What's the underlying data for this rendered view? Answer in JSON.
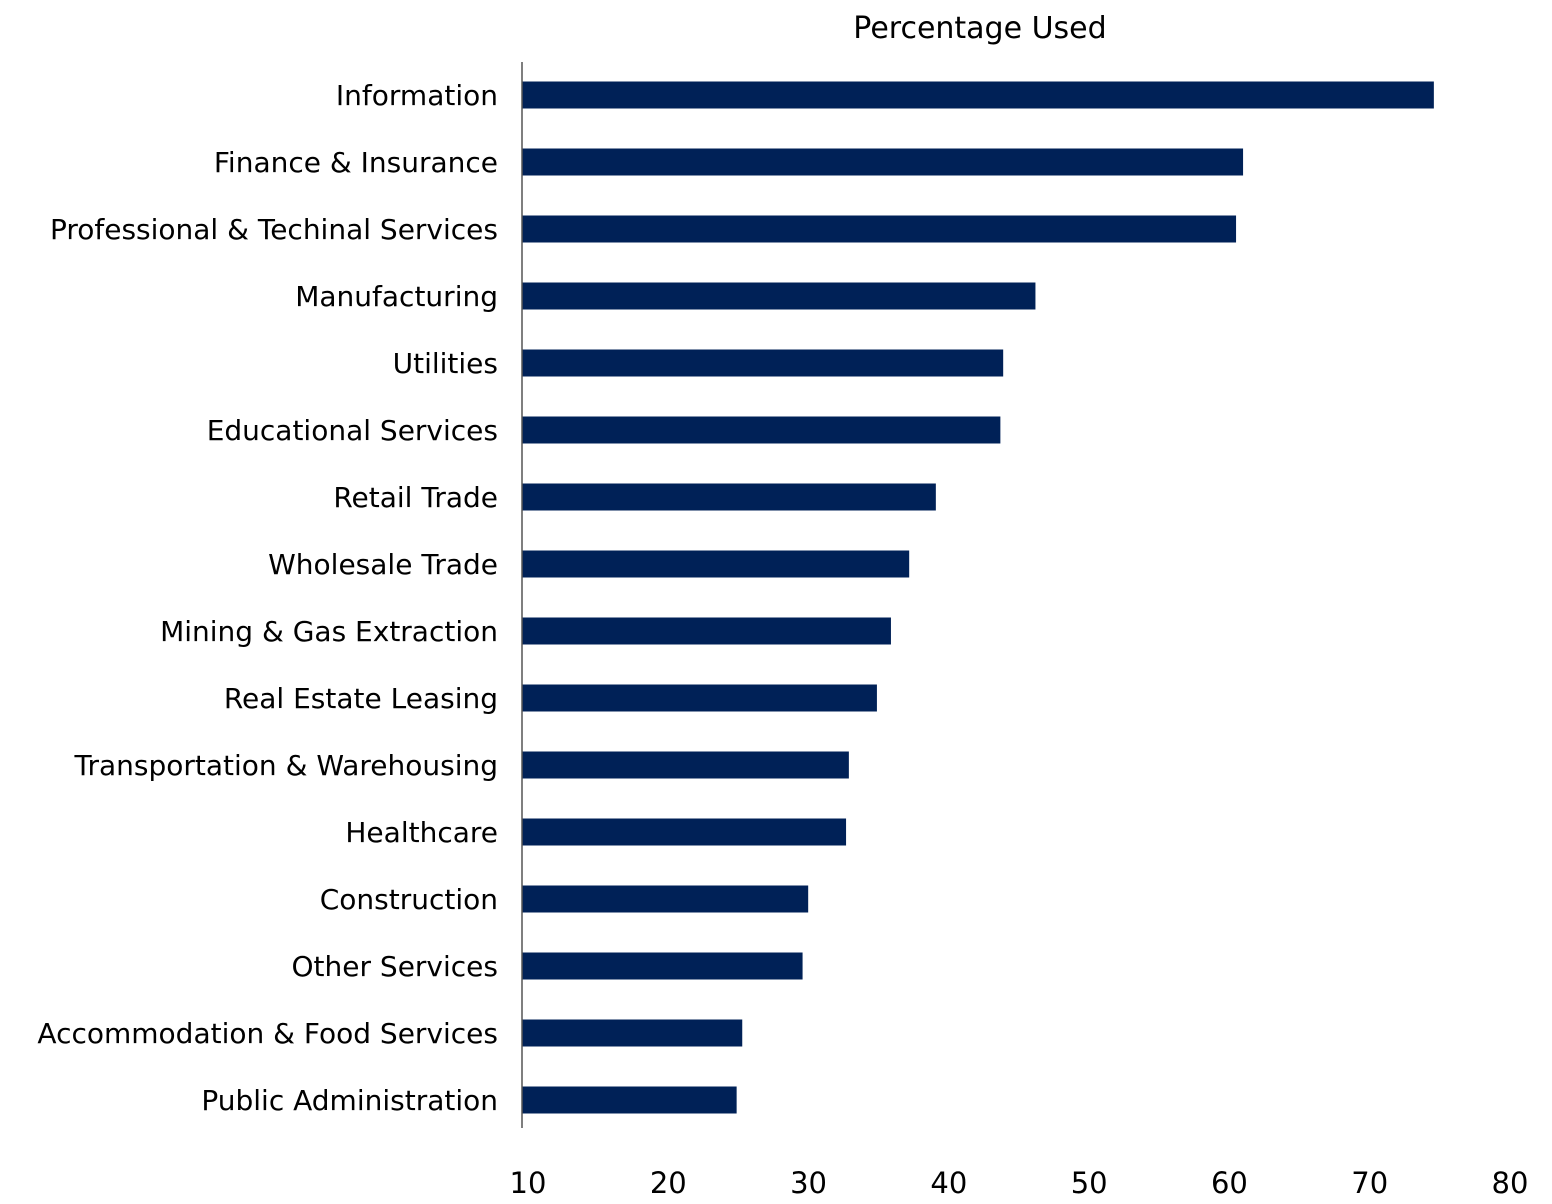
{
  "chart_data": {
    "type": "bar",
    "orientation": "horizontal",
    "title": "Percentage Used",
    "xlabel": "",
    "ylabel": "",
    "xlim": [
      10,
      80
    ],
    "x_ticks": [
      "10",
      "20",
      "30",
      "40",
      "50",
      "60",
      "70",
      "80"
    ],
    "grid": false,
    "legend": "none",
    "bar_color": "#002157",
    "categories": [
      "Information",
      "Finance & Insurance",
      "Professional & Techinal Services",
      "Manufacturing",
      "Utilities",
      "Educational Services",
      "Retail Trade",
      "Wholesale Trade",
      "Mining & Gas Extraction",
      "Real Estate Leasing",
      "Transportation & Warehousing",
      "Healthcare",
      "Construction",
      "Other Services",
      "Accommodation & Food Services",
      "Public Administration"
    ],
    "values": [
      75.0,
      61.4,
      60.9,
      46.6,
      44.3,
      44.1,
      39.5,
      37.6,
      36.3,
      35.3,
      33.3,
      33.1,
      30.4,
      30.0,
      25.7,
      25.3
    ]
  }
}
